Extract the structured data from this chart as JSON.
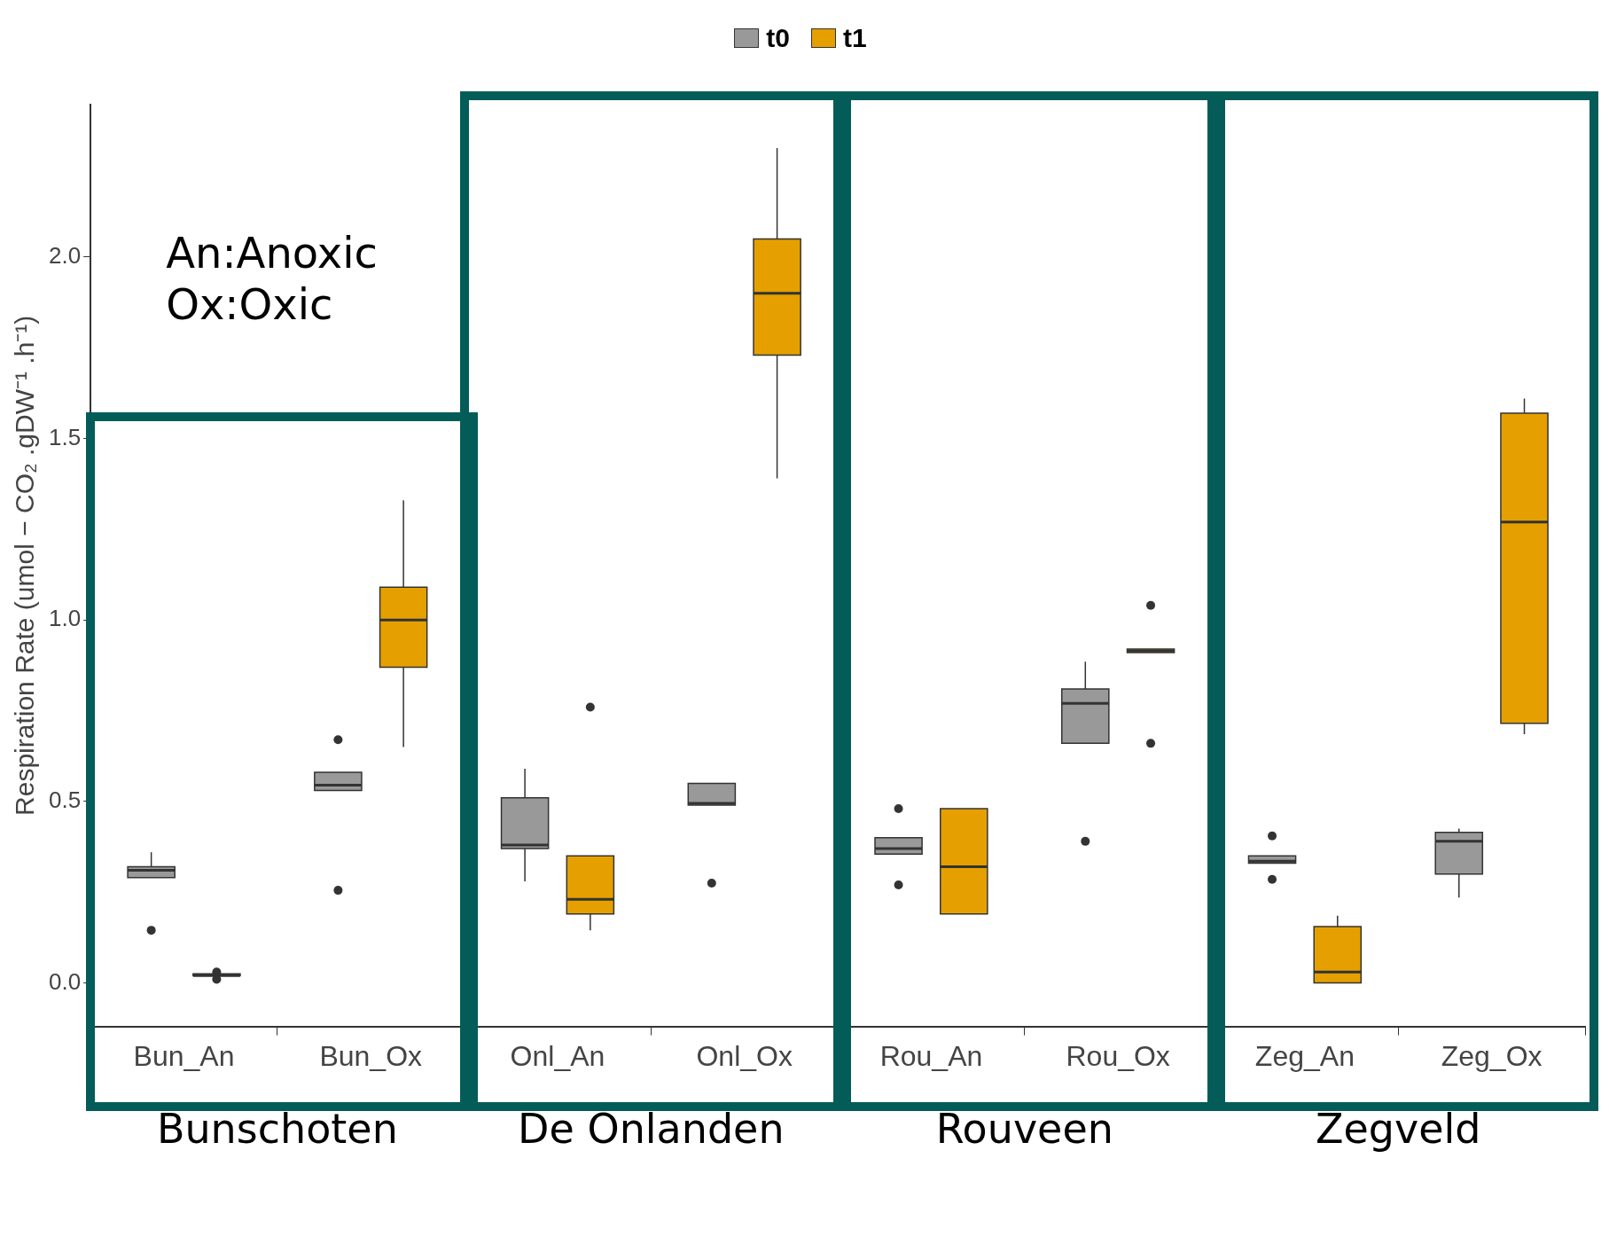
{
  "chart_data": {
    "type": "box",
    "ylabel": "Respiration Rate (umol − CO₂ .gDW⁻¹ .h⁻¹)",
    "categories": [
      "Bun_An",
      "Bun_Ox",
      "Onl_An",
      "Onl_Ox",
      "Rou_An",
      "Rou_Ox",
      "Zeg_An",
      "Zeg_Ox"
    ],
    "ylim": [
      -0.12,
      2.42
    ],
    "yticks": [
      {
        "value": 0,
        "label": "0.0"
      },
      0.5,
      {
        "value": 1,
        "label": "1.0"
      },
      1.5,
      {
        "value": 2,
        "label": "2.0"
      }
    ],
    "legend": "top",
    "annotations": [
      "An:Anoxic\nOx:Oxic",
      "Bunschoten",
      "De Onlanden",
      "Rouveen",
      "Zegveld"
    ],
    "series": [
      {
        "name": "t0",
        "color": "#999999",
        "boxes": [
          {
            "low": 0.29,
            "q1": 0.29,
            "median": 0.31,
            "q3": 0.32,
            "high": 0.36,
            "outliers": [
              0.145
            ]
          },
          {
            "low": 0.53,
            "q1": 0.53,
            "median": 0.545,
            "q3": 0.58,
            "high": 0.58,
            "outliers": [
              0.67,
              0.255
            ]
          },
          {
            "low": 0.28,
            "q1": 0.37,
            "median": 0.38,
            "q3": 0.51,
            "high": 0.59
          },
          {
            "low": 0.49,
            "q1": 0.49,
            "median": 0.495,
            "q3": 0.55,
            "high": 0.55,
            "outliers": [
              0.275
            ]
          },
          {
            "low": 0.355,
            "q1": 0.355,
            "median": 0.37,
            "q3": 0.4,
            "high": 0.4,
            "outliers": [
              0.48,
              0.27
            ]
          },
          {
            "low": 0.66,
            "q1": 0.66,
            "median": 0.77,
            "q3": 0.81,
            "high": 0.885,
            "outliers": [
              0.39
            ]
          },
          {
            "low": 0.33,
            "q1": 0.33,
            "median": 0.335,
            "q3": 0.35,
            "high": 0.35,
            "outliers": [
              0.405,
              0.285
            ]
          },
          {
            "low": 0.235,
            "q1": 0.3,
            "median": 0.39,
            "q3": 0.415,
            "high": 0.425
          }
        ]
      },
      {
        "name": "t1",
        "color": "#e5a000",
        "boxes": [
          {
            "low": 0.02,
            "q1": 0.02,
            "median": 0.02,
            "q3": 0.025,
            "high": 0.025,
            "outliers": [
              0.03,
              0.01
            ]
          },
          {
            "low": 0.65,
            "q1": 0.87,
            "median": 1.0,
            "q3": 1.09,
            "high": 1.33
          },
          {
            "low": 0.145,
            "q1": 0.19,
            "median": 0.23,
            "q3": 0.35,
            "high": 0.35,
            "outliers": [
              0.76
            ]
          },
          {
            "low": 1.39,
            "q1": 1.73,
            "median": 1.9,
            "q3": 2.05,
            "high": 2.3
          },
          {
            "low": 0.19,
            "q1": 0.19,
            "median": 0.32,
            "q3": 0.48,
            "high": 0.48
          },
          {
            "low": 0.91,
            "q1": 0.91,
            "median": 0.915,
            "q3": 0.92,
            "high": 0.92,
            "outliers": [
              1.04,
              0.66
            ]
          },
          {
            "low": 0.0,
            "q1": 0.0,
            "median": 0.03,
            "q3": 0.155,
            "high": 0.185
          },
          {
            "low": 0.685,
            "q1": 0.715,
            "median": 1.27,
            "q3": 1.57,
            "high": 1.61
          }
        ]
      }
    ]
  }
}
